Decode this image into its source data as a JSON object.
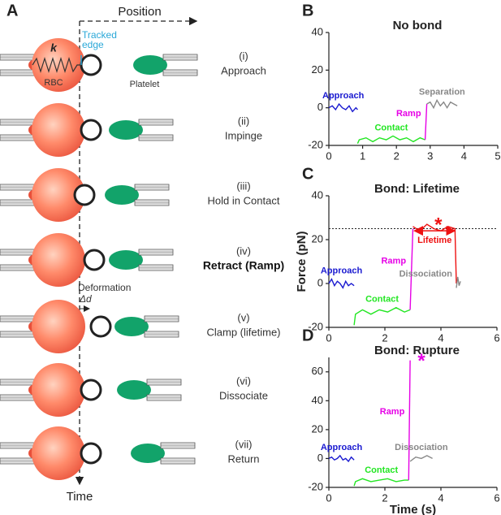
{
  "schematic": {
    "panel": "A",
    "x_axis": "Position",
    "y_axis": "Time",
    "tracked_edge": [
      "Tracked",
      "edge"
    ],
    "spring": "k",
    "rbc": "RBC",
    "platelet": "Platelet",
    "deformation": "Deformation",
    "delta": "Δd",
    "steps": [
      {
        "num": "(i)",
        "label": "Approach"
      },
      {
        "num": "(ii)",
        "label": "Impinge"
      },
      {
        "num": "(iii)",
        "label": "Hold in Contact"
      },
      {
        "num": "(iv)",
        "label": "Retract (Ramp)"
      },
      {
        "num": "(v)",
        "label": "Clamp (lifetime)"
      },
      {
        "num": "(vi)",
        "label": "Dissociate"
      },
      {
        "num": "(vii)",
        "label": "Return"
      }
    ]
  },
  "chart_data": [
    {
      "type": "line",
      "panel": "B",
      "title": "No bond",
      "xlim": [
        0,
        5
      ],
      "xticks": [
        0,
        1,
        2,
        3,
        4,
        5
      ],
      "ylim": [
        -20,
        40
      ],
      "yticks": [
        -20,
        0,
        20,
        40
      ],
      "series": [
        {
          "name": "Approach",
          "color": "#1a1ad0",
          "x": [
            0,
            0.1,
            0.2,
            0.3,
            0.4,
            0.5,
            0.6,
            0.7,
            0.8,
            0.85
          ],
          "values": [
            0,
            1,
            -1,
            2,
            0,
            -1,
            1,
            -2,
            0,
            -1
          ]
        },
        {
          "name": "Contact",
          "color": "#22e622",
          "x": [
            0.85,
            0.9,
            1.1,
            1.3,
            1.5,
            1.7,
            1.9,
            2.1,
            2.3,
            2.5,
            2.7,
            2.85
          ],
          "values": [
            -19,
            -17,
            -16,
            -18,
            -16,
            -17,
            -15,
            -17,
            -16,
            -18,
            -16,
            -17
          ]
        },
        {
          "name": "Ramp",
          "color": "#e600e6",
          "x": [
            2.85,
            2.9
          ],
          "values": [
            -17,
            2
          ]
        },
        {
          "name": "Separation",
          "color": "#888888",
          "x": [
            2.9,
            3.0,
            3.1,
            3.2,
            3.3,
            3.4,
            3.5,
            3.6,
            3.7,
            3.8
          ],
          "values": [
            2,
            3,
            0,
            4,
            1,
            3,
            0,
            3,
            2,
            1
          ]
        }
      ]
    },
    {
      "type": "line",
      "panel": "C",
      "title": "Bond: Lifetime",
      "ylabel": "Force (pN)",
      "xlim": [
        0,
        6
      ],
      "xticks": [
        0,
        2,
        4,
        6
      ],
      "ylim": [
        -20,
        40
      ],
      "yticks": [
        -20,
        0,
        20,
        40
      ],
      "reference_line": 25,
      "marker": "*",
      "series": [
        {
          "name": "Approach",
          "color": "#1a1ad0",
          "x": [
            0,
            0.1,
            0.2,
            0.3,
            0.4,
            0.5,
            0.6,
            0.7,
            0.8,
            0.9
          ],
          "values": [
            0,
            2,
            -1,
            1,
            0,
            -2,
            1,
            -1,
            0,
            -1
          ]
        },
        {
          "name": "Contact",
          "color": "#22e622",
          "x": [
            0.9,
            0.95,
            1.2,
            1.5,
            1.8,
            2.1,
            2.4,
            2.7,
            2.9
          ],
          "values": [
            -19,
            -14,
            -12,
            -14,
            -12,
            -13,
            -11,
            -13,
            -12
          ]
        },
        {
          "name": "Ramp",
          "color": "#e600e6",
          "x": [
            2.9,
            3.0
          ],
          "values": [
            -12,
            25
          ]
        },
        {
          "name": "Lifetime",
          "color": "#ee1111",
          "x": [
            3.0,
            3.25,
            3.5,
            3.75,
            4.0,
            4.25,
            4.5,
            4.55
          ],
          "values": [
            26,
            24,
            27,
            25,
            24,
            26,
            25,
            0
          ]
        },
        {
          "name": "Dissociation",
          "color": "#888888",
          "x": [
            4.55,
            4.6,
            4.65,
            4.7
          ],
          "values": [
            -2,
            3,
            -1,
            1
          ]
        }
      ]
    },
    {
      "type": "line",
      "panel": "D",
      "title": "Bond: Rupture",
      "xlabel": "Time (s)",
      "xlim": [
        0,
        6
      ],
      "xticks": [
        0,
        2,
        4,
        6
      ],
      "ylim": [
        -20,
        70
      ],
      "yticks": [
        -20,
        0,
        20,
        40,
        60
      ],
      "marker": "*",
      "series": [
        {
          "name": "Approach",
          "color": "#1a1ad0",
          "x": [
            0,
            0.1,
            0.2,
            0.3,
            0.4,
            0.5,
            0.6,
            0.7,
            0.8,
            0.9
          ],
          "values": [
            0,
            1,
            -1,
            0,
            2,
            -1,
            0,
            -2,
            1,
            -1
          ]
        },
        {
          "name": "Contact",
          "color": "#22e622",
          "x": [
            0.9,
            0.95,
            1.2,
            1.5,
            1.8,
            2.1,
            2.4,
            2.7,
            2.85
          ],
          "values": [
            -19,
            -16,
            -14,
            -16,
            -15,
            -14,
            -16,
            -15,
            -15
          ]
        },
        {
          "name": "Ramp",
          "color": "#e600e6",
          "x": [
            2.85,
            2.9
          ],
          "values": [
            -15,
            68
          ]
        },
        {
          "name": "Dissociation",
          "color": "#888888",
          "x": [
            2.9,
            3.1,
            3.3,
            3.5,
            3.7
          ],
          "values": [
            -2,
            1,
            0,
            2,
            0
          ]
        }
      ]
    }
  ]
}
